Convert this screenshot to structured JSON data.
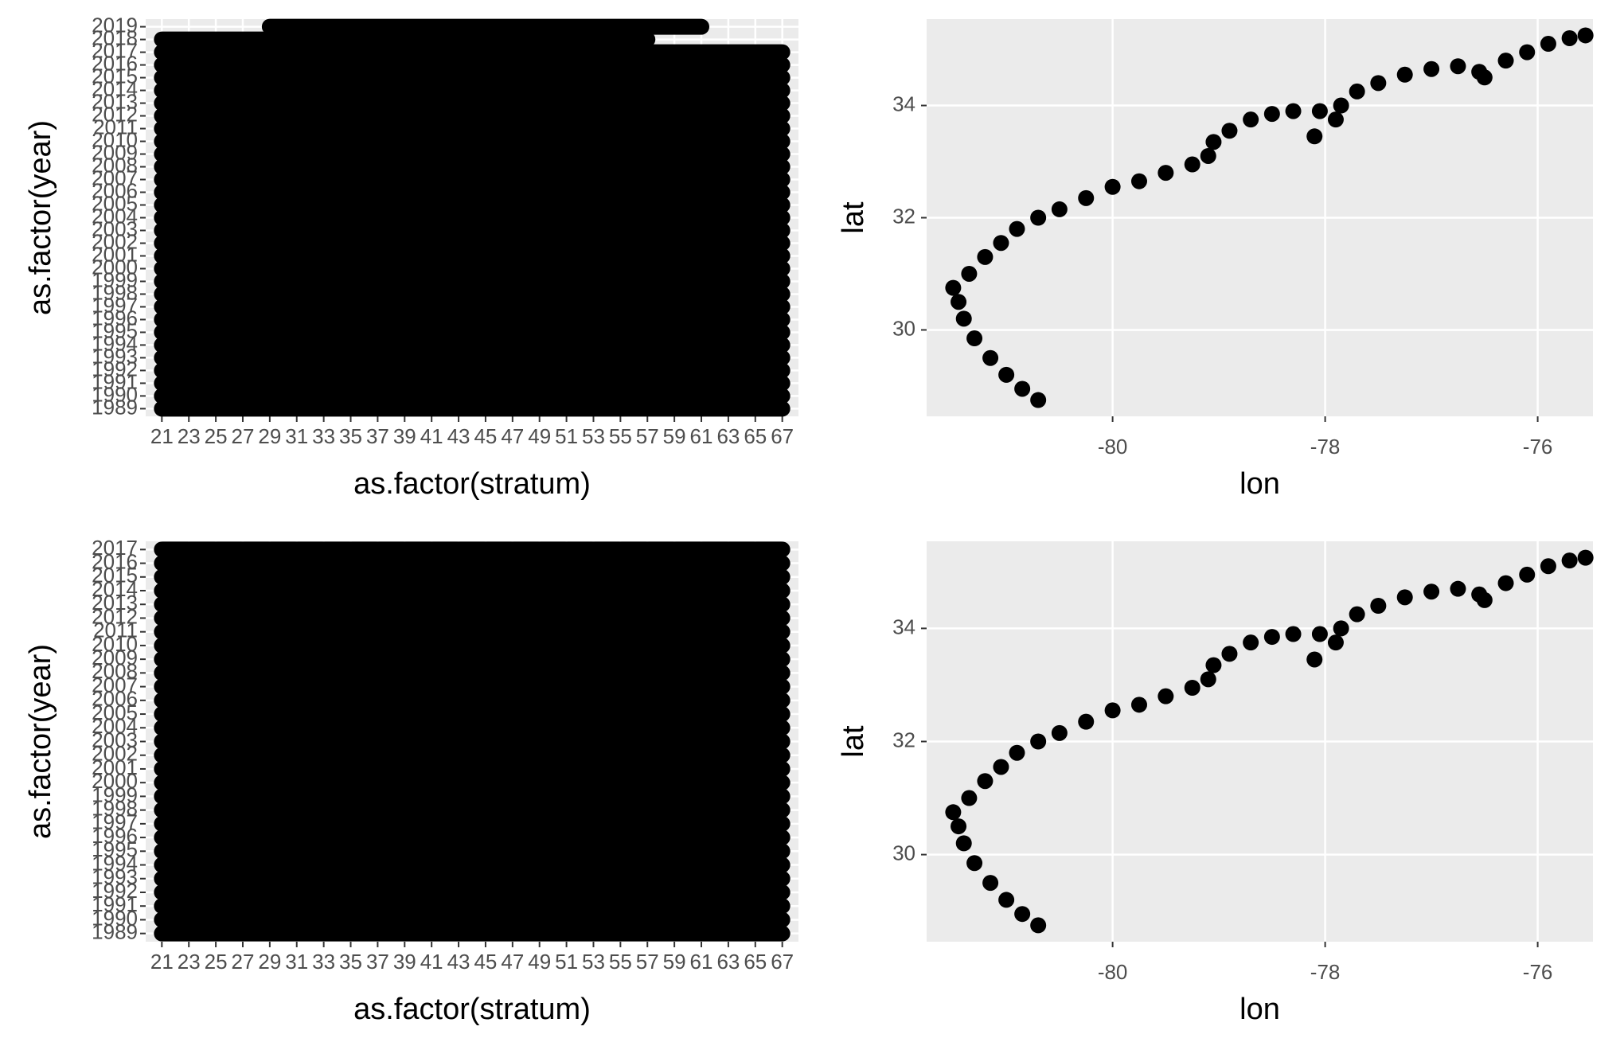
{
  "chart_data": [
    {
      "type": "strip",
      "x_label": "as.factor(stratum)",
      "y_label": "as.factor(year)",
      "color": "#000000",
      "grid": true,
      "categories": [
        21,
        23,
        25,
        27,
        29,
        31,
        33,
        35,
        37,
        39,
        41,
        43,
        45,
        47,
        49,
        51,
        53,
        55,
        57,
        59,
        61,
        63,
        65,
        67
      ],
      "y_categories": [
        1989,
        1990,
        1991,
        1992,
        1993,
        1994,
        1995,
        1996,
        1997,
        1998,
        1999,
        2000,
        2001,
        2002,
        2003,
        2004,
        2005,
        2006,
        2007,
        2008,
        2009,
        2010,
        2011,
        2012,
        2013,
        2014,
        2015,
        2016,
        2017,
        2018,
        2019
      ],
      "x_start": [
        21,
        21,
        21,
        21,
        21,
        21,
        21,
        21,
        21,
        21,
        21,
        21,
        21,
        21,
        21,
        21,
        21,
        21,
        21,
        21,
        21,
        21,
        21,
        21,
        21,
        21,
        21,
        21,
        21,
        21,
        29
      ],
      "x_end": [
        67,
        67,
        67,
        67,
        67,
        67,
        67,
        67,
        67,
        67,
        67,
        67,
        67,
        67,
        67,
        67,
        67,
        67,
        67,
        67,
        67,
        67,
        67,
        67,
        67,
        67,
        67,
        67,
        67,
        57,
        61
      ]
    },
    {
      "type": "scatter",
      "x_label": "lon",
      "y_label": "lat",
      "color": "#000000",
      "grid": true,
      "xlim": [
        -81.75,
        -75.48
      ],
      "ylim": [
        28.46,
        35.54
      ],
      "xticks": [
        -80,
        -78,
        -76
      ],
      "yticks": [
        30,
        32,
        34
      ],
      "x": [
        -80.7,
        -80.85,
        -81.0,
        -81.15,
        -81.3,
        -81.4,
        -81.45,
        -81.5,
        -81.35,
        -81.2,
        -81.05,
        -80.9,
        -80.7,
        -80.5,
        -80.25,
        -80.0,
        -79.75,
        -79.5,
        -79.25,
        -79.1,
        -79.05,
        -78.9,
        -78.7,
        -78.5,
        -78.3,
        -78.05,
        -78.1,
        -77.9,
        -77.85,
        -77.7,
        -77.5,
        -77.25,
        -77.0,
        -76.75,
        -76.55,
        -76.5,
        -76.3,
        -76.1,
        -75.9,
        -75.7,
        -75.55
      ],
      "y": [
        28.75,
        28.95,
        29.2,
        29.5,
        29.85,
        30.2,
        30.5,
        30.75,
        31.0,
        31.3,
        31.55,
        31.8,
        32.0,
        32.15,
        32.35,
        32.55,
        32.65,
        32.8,
        32.95,
        33.1,
        33.35,
        33.55,
        33.75,
        33.85,
        33.9,
        33.9,
        33.45,
        33.75,
        34.0,
        34.25,
        34.4,
        34.55,
        34.65,
        34.7,
        34.6,
        34.5,
        34.8,
        34.95,
        35.1,
        35.2,
        35.25
      ]
    },
    {
      "type": "strip",
      "x_label": "as.factor(stratum)",
      "y_label": "as.factor(year)",
      "color": "#000000",
      "grid": true,
      "categories": [
        21,
        23,
        25,
        27,
        29,
        31,
        33,
        35,
        37,
        39,
        41,
        43,
        45,
        47,
        49,
        51,
        53,
        55,
        57,
        59,
        61,
        63,
        65,
        67
      ],
      "y_categories": [
        1989,
        1990,
        1991,
        1992,
        1993,
        1994,
        1995,
        1996,
        1997,
        1998,
        1999,
        2000,
        2001,
        2002,
        2003,
        2004,
        2005,
        2006,
        2007,
        2008,
        2009,
        2010,
        2011,
        2012,
        2013,
        2014,
        2015,
        2016,
        2017
      ],
      "x_start": [
        21,
        21,
        21,
        21,
        21,
        21,
        21,
        21,
        21,
        21,
        21,
        21,
        21,
        21,
        21,
        21,
        21,
        21,
        21,
        21,
        21,
        21,
        21,
        21,
        21,
        21,
        21,
        21,
        21
      ],
      "x_end": [
        67,
        67,
        67,
        67,
        67,
        67,
        67,
        67,
        67,
        67,
        67,
        67,
        67,
        67,
        67,
        67,
        67,
        67,
        67,
        67,
        67,
        67,
        67,
        67,
        67,
        67,
        67,
        67,
        67
      ]
    },
    {
      "type": "scatter",
      "x_label": "lon",
      "y_label": "lat",
      "color": "#000000",
      "grid": true,
      "xlim": [
        -81.75,
        -75.48
      ],
      "ylim": [
        28.46,
        35.54
      ],
      "xticks": [
        -80,
        -78,
        -76
      ],
      "yticks": [
        30,
        32,
        34
      ],
      "x": [
        -80.7,
        -80.85,
        -81.0,
        -81.15,
        -81.3,
        -81.4,
        -81.45,
        -81.5,
        -81.35,
        -81.2,
        -81.05,
        -80.9,
        -80.7,
        -80.5,
        -80.25,
        -80.0,
        -79.75,
        -79.5,
        -79.25,
        -79.1,
        -79.05,
        -78.9,
        -78.7,
        -78.5,
        -78.3,
        -78.05,
        -78.1,
        -77.9,
        -77.85,
        -77.7,
        -77.5,
        -77.25,
        -77.0,
        -76.75,
        -76.55,
        -76.5,
        -76.3,
        -76.1,
        -75.9,
        -75.7,
        -75.55
      ],
      "y": [
        28.75,
        28.95,
        29.2,
        29.5,
        29.85,
        30.2,
        30.5,
        30.75,
        31.0,
        31.3,
        31.55,
        31.8,
        32.0,
        32.15,
        32.35,
        32.55,
        32.65,
        32.8,
        32.95,
        33.1,
        33.35,
        33.55,
        33.75,
        33.85,
        33.9,
        33.9,
        33.45,
        33.75,
        34.0,
        34.25,
        34.4,
        34.55,
        34.65,
        34.7,
        34.6,
        34.5,
        34.8,
        34.95,
        35.1,
        35.2,
        35.25
      ]
    }
  ]
}
